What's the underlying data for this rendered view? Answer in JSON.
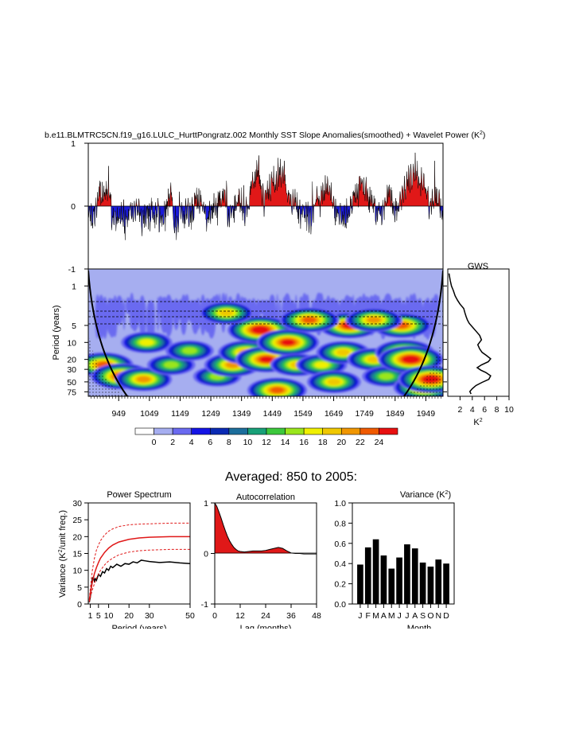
{
  "main_title": "b.e11.BLMTRC5CN.f19_g16.LULC_HurttPongratz.002 Monthly SST Slope Anomalies(smoothed) + Wavelet Power (K",
  "main_title_sup": "2",
  "main_title_end": ")",
  "averaged_title": "Averaged: 850 to 2005:",
  "colors": {
    "positive": "#e01818",
    "negative": "#1a1ad8",
    "wavelet_bg": "#a6aef0",
    "bar": "#000000"
  },
  "chart_data": [
    {
      "id": "timeseries",
      "type": "area",
      "title": "",
      "xlim": [
        850,
        2005
      ],
      "ylim": [
        -1,
        1
      ],
      "yticks": [
        "1",
        "0",
        "-1"
      ],
      "baseline": 0,
      "fill_above": "#e01818",
      "fill_below": "#1a1ad8",
      "anchors_x": [
        850,
        870,
        890,
        910,
        930,
        960,
        1000,
        1030,
        1060,
        1090,
        1120,
        1130,
        1150,
        1180,
        1210,
        1240,
        1260,
        1290,
        1310,
        1340,
        1360,
        1390,
        1400,
        1420,
        1450,
        1480,
        1510,
        1540,
        1570,
        1600,
        1630,
        1660,
        1690,
        1710,
        1740,
        1770,
        1800,
        1830,
        1850,
        1880,
        1910,
        1940,
        1960,
        1980,
        2005
      ],
      "anchors_y": [
        -0.05,
        -0.1,
        0.2,
        0.25,
        -0.1,
        -0.2,
        -0.05,
        -0.15,
        -0.1,
        -0.2,
        0.15,
        -0.3,
        -0.1,
        -0.15,
        0.1,
        -0.15,
        -0.05,
        0.2,
        -0.1,
        0.1,
        -0.1,
        0.4,
        0.6,
        0.2,
        0.3,
        0.5,
        0.1,
        -0.1,
        -0.15,
        0.1,
        0.3,
        -0.1,
        -0.2,
        0.1,
        0.35,
        0.1,
        -0.15,
        0.2,
        -0.1,
        0.3,
        0.5,
        0.4,
        0.1,
        0.2,
        -0.2
      ]
    },
    {
      "id": "wavelet",
      "type": "heatmap",
      "title": "",
      "xlim": [
        850,
        2005
      ],
      "xticks": [
        949,
        1049,
        1149,
        1249,
        1349,
        1449,
        1549,
        1649,
        1749,
        1849,
        1949
      ],
      "ylabel": "Period (years)",
      "yticks": [
        "1",
        "5",
        "10",
        "20",
        "30",
        "50",
        "75"
      ],
      "ytick_values": [
        1,
        5,
        10,
        20,
        30,
        50,
        75
      ],
      "ylim": [
        0.5,
        90
      ],
      "colorbar_labels": [
        "0",
        "2",
        "4",
        "6",
        "8",
        "10",
        "12",
        "14",
        "16",
        "18",
        "20",
        "22",
        "24"
      ],
      "colorbar_colors": [
        "#ffffff",
        "#a6aef0",
        "#6a6af0",
        "#1414e6",
        "#0a2ab4",
        "#1c6e9c",
        "#18a078",
        "#3cc83c",
        "#9ae61c",
        "#f0f000",
        "#f0c800",
        "#f09600",
        "#f05a00",
        "#e81010"
      ],
      "blobs": [
        {
          "x": 900,
          "p": 25,
          "i": 12
        },
        {
          "x": 960,
          "p": 40,
          "i": 13
        },
        {
          "x": 1030,
          "p": 45,
          "i": 11
        },
        {
          "x": 1120,
          "p": 25,
          "i": 8
        },
        {
          "x": 1180,
          "p": 14,
          "i": 8
        },
        {
          "x": 1270,
          "p": 40,
          "i": 8
        },
        {
          "x": 1320,
          "p": 25,
          "i": 11
        },
        {
          "x": 1365,
          "p": 15,
          "i": 11
        },
        {
          "x": 1430,
          "p": 20,
          "i": 13
        },
        {
          "x": 1465,
          "p": 70,
          "i": 12
        },
        {
          "x": 1410,
          "p": 6,
          "i": 14
        },
        {
          "x": 1500,
          "p": 10,
          "i": 13
        },
        {
          "x": 1530,
          "p": 25,
          "i": 10
        },
        {
          "x": 1610,
          "p": 25,
          "i": 9
        },
        {
          "x": 1650,
          "p": 50,
          "i": 10
        },
        {
          "x": 1680,
          "p": 15,
          "i": 10
        },
        {
          "x": 1700,
          "p": 5,
          "i": 13
        },
        {
          "x": 1780,
          "p": 20,
          "i": 10
        },
        {
          "x": 1820,
          "p": 40,
          "i": 8
        },
        {
          "x": 1880,
          "p": 15,
          "i": 12
        },
        {
          "x": 1900,
          "p": 20,
          "i": 14
        },
        {
          "x": 1945,
          "p": 62,
          "i": 13
        },
        {
          "x": 1965,
          "p": 45,
          "i": 14
        },
        {
          "x": 1870,
          "p": 5,
          "i": 12
        },
        {
          "x": 1780,
          "p": 4,
          "i": 11
        },
        {
          "x": 1300,
          "p": 3,
          "i": 10
        },
        {
          "x": 1040,
          "p": 10,
          "i": 9
        },
        {
          "x": 1570,
          "p": 4,
          "i": 12
        }
      ]
    },
    {
      "id": "gws",
      "type": "line",
      "title": "GWS",
      "xlabel": "K",
      "xlabel_sup": "2",
      "xlim": [
        0,
        10
      ],
      "xticks": [
        "2",
        "4",
        "6",
        "8",
        "10"
      ],
      "x": [
        0.2,
        0.4,
        0.6,
        0.9,
        1.2,
        1.6,
        2.0,
        2.6,
        2.8,
        3.0,
        3.2,
        3.5,
        4.0,
        4.6,
        5.2,
        5.5,
        4.9,
        5.2,
        5.6,
        6.3,
        7.0,
        6.6,
        5.5,
        4.8,
        5.4,
        6.2,
        7.0,
        6.7,
        5.6,
        4.6,
        4.0,
        3.6,
        3.8
      ],
      "y": [
        0.6,
        0.8,
        1.0,
        1.2,
        1.5,
        1.8,
        2.1,
        2.5,
        3.0,
        3.5,
        4.0,
        4.6,
        5.3,
        6.3,
        7.5,
        9.0,
        11.0,
        13.0,
        15.0,
        17.0,
        19.5,
        22.0,
        25.0,
        28.0,
        31.0,
        34.0,
        39.0,
        45.0,
        51.0,
        58.0,
        66.0,
        74.0,
        82.0
      ]
    },
    {
      "id": "power_spectrum",
      "type": "line",
      "title": "Power Spectrum",
      "ylabel": "Variance (K",
      "ylabel_sup": "2",
      "ylabel_end": "/unit freq.)",
      "xlabel": "Period (years)",
      "xlim": [
        0,
        50
      ],
      "ylim": [
        0,
        30
      ],
      "xticks": [
        "1",
        "5",
        "10",
        "20",
        "30",
        "50"
      ],
      "xtick_values": [
        1,
        5,
        10,
        20,
        30,
        50
      ],
      "yticks": [
        "0",
        "5",
        "10",
        "15",
        "20",
        "25",
        "30"
      ],
      "ytick_values": [
        0,
        5,
        10,
        15,
        20,
        25,
        30
      ],
      "series": [
        {
          "color": "#000000",
          "dash": "",
          "width": 1.5,
          "x": [
            0.5,
            1,
            1.5,
            2,
            2.5,
            3,
            3.5,
            4,
            5,
            6,
            7,
            8,
            9,
            10,
            11,
            12,
            14,
            16,
            18,
            20,
            22,
            24,
            26,
            28,
            30,
            35,
            40,
            45,
            50
          ],
          "y": [
            0.5,
            2.0,
            5.0,
            7.5,
            8.0,
            6.8,
            7.5,
            7.0,
            8.8,
            8.2,
            9.6,
            9.2,
            10.5,
            10.0,
            11.2,
            10.8,
            11.8,
            11.2,
            12.0,
            11.8,
            12.5,
            12.2,
            13.0,
            12.8,
            12.6,
            12.3,
            12.5,
            12.2,
            12.0
          ]
        },
        {
          "color": "#e01818",
          "dash": "",
          "width": 1.5,
          "x": [
            0.5,
            1,
            2,
            3,
            4,
            5,
            6,
            8,
            10,
            12,
            15,
            20,
            25,
            30,
            40,
            50
          ],
          "y": [
            1.0,
            3.0,
            6.5,
            9.0,
            10.8,
            12.3,
            13.6,
            15.3,
            16.6,
            17.5,
            18.4,
            19.2,
            19.6,
            19.8,
            20.0,
            20.0
          ]
        },
        {
          "color": "#e01818",
          "dash": "3,2",
          "width": 1,
          "x": [
            0.5,
            1,
            2,
            3,
            4,
            5,
            6,
            8,
            10,
            12,
            15,
            20,
            25,
            30,
            40,
            50
          ],
          "y": [
            1.5,
            4.5,
            10.0,
            13.5,
            16.0,
            17.5,
            18.8,
            20.5,
            21.6,
            22.3,
            23.0,
            23.5,
            23.7,
            23.8,
            24.0,
            24.0
          ]
        },
        {
          "color": "#e01818",
          "dash": "3,2",
          "width": 1,
          "x": [
            0.5,
            1,
            2,
            3,
            4,
            5,
            6,
            8,
            10,
            12,
            15,
            20,
            25,
            30,
            40,
            50
          ],
          "y": [
            0.6,
            2.0,
            4.2,
            6.0,
            7.6,
            8.8,
            10.0,
            11.6,
            12.8,
            13.6,
            14.6,
            15.4,
            15.8,
            16.0,
            16.2,
            16.2
          ]
        }
      ]
    },
    {
      "id": "autocorrelation",
      "type": "area",
      "title": "Autocorrelation",
      "xlabel": "Lag (months)",
      "xlim": [
        0,
        48
      ],
      "ylim": [
        -1,
        1
      ],
      "xticks": [
        "0",
        "12",
        "24",
        "36",
        "48"
      ],
      "xtick_values": [
        0,
        12,
        24,
        36,
        48
      ],
      "yticks": [
        "1",
        "0",
        "-1"
      ],
      "ytick_values": [
        1,
        0,
        -1
      ],
      "x": [
        0,
        1,
        2,
        3,
        4,
        5,
        6,
        7,
        8,
        9,
        10,
        11,
        12,
        14,
        16,
        18,
        20,
        22,
        24,
        26,
        28,
        30,
        32,
        34,
        36,
        38,
        40,
        42,
        44,
        46,
        48
      ],
      "y": [
        1.0,
        0.93,
        0.82,
        0.7,
        0.57,
        0.45,
        0.34,
        0.25,
        0.18,
        0.12,
        0.08,
        0.05,
        0.04,
        0.03,
        0.04,
        0.05,
        0.05,
        0.05,
        0.06,
        0.08,
        0.1,
        0.12,
        0.1,
        0.05,
        0.01,
        0.0,
        0.0,
        -0.01,
        -0.01,
        -0.01,
        -0.01
      ]
    },
    {
      "id": "variance",
      "type": "bar",
      "title": "Variance (K",
      "title_sup": "2",
      "title_end": ")",
      "xlabel": "Month",
      "ylim": [
        0,
        1
      ],
      "yticks": [
        "0.0",
        "0.2",
        "0.4",
        "0.6",
        "0.8",
        "1.0"
      ],
      "ytick_values": [
        0,
        0.2,
        0.4,
        0.6,
        0.8,
        1.0
      ],
      "categories": [
        "J",
        "F",
        "M",
        "A",
        "M",
        "J",
        "J",
        "A",
        "S",
        "O",
        "N",
        "D"
      ],
      "values": [
        0.39,
        0.56,
        0.64,
        0.48,
        0.35,
        0.46,
        0.59,
        0.55,
        0.41,
        0.37,
        0.44,
        0.4
      ]
    }
  ]
}
